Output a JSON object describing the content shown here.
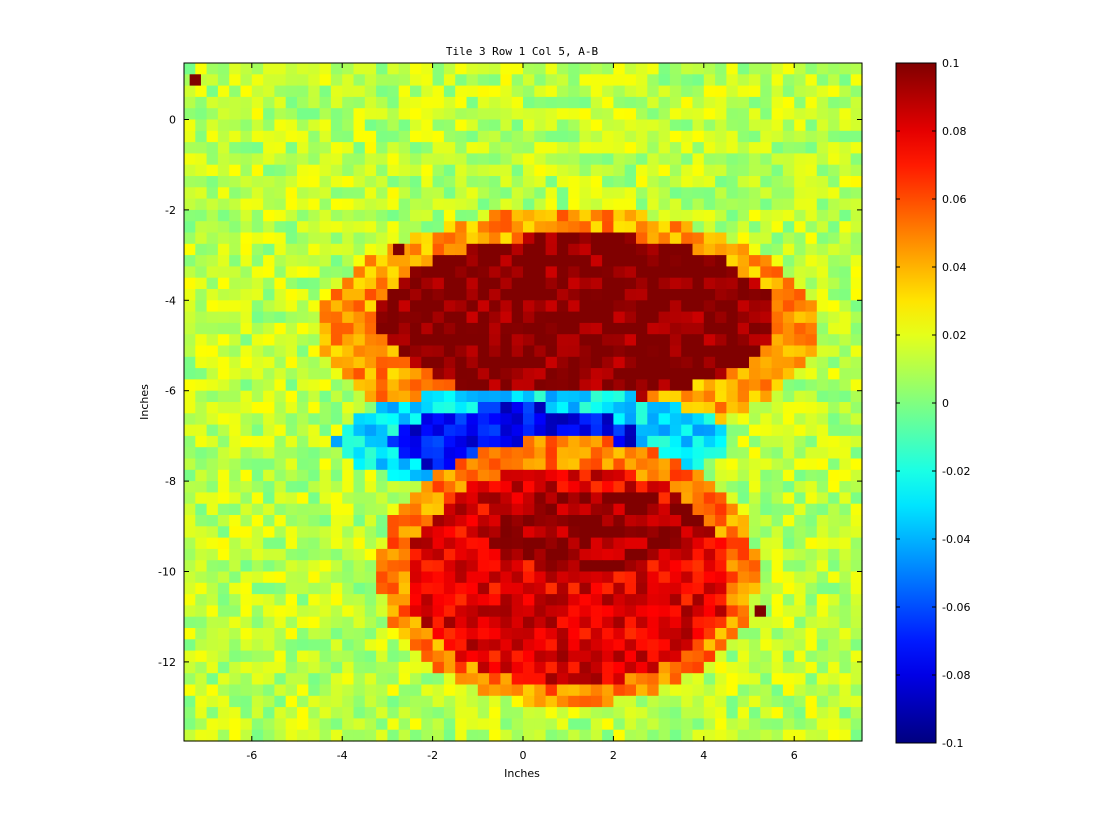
{
  "chart_data": {
    "type": "heatmap",
    "title": "Tile 3 Row 1 Col 5, A-B",
    "xlabel": "Inches",
    "ylabel": "Inches",
    "xlim": [
      -7.5,
      7.5
    ],
    "ylim": [
      -13.75,
      1.25
    ],
    "x_ticks": [
      -6,
      -4,
      -2,
      0,
      2,
      4,
      6
    ],
    "x_tick_labels": [
      "-6",
      "-4",
      "-2",
      "0",
      "2",
      "4",
      "6"
    ],
    "y_ticks": [
      0,
      -2,
      -4,
      -6,
      -8,
      -10,
      -12
    ],
    "y_tick_labels": [
      "0",
      "-2",
      "-4",
      "-6",
      "-8",
      "-10",
      "-12"
    ],
    "grid": false,
    "colormap": "jet",
    "clim": [
      -0.1,
      0.1
    ],
    "colorbar_ticks": [
      0.1,
      0.08,
      0.06,
      0.04,
      0.02,
      0,
      -0.02,
      -0.04,
      -0.06,
      -0.08,
      -0.1
    ],
    "colorbar_tick_labels": [
      "0.1",
      "0.08",
      "0.06",
      "0.04",
      "0.02",
      "0",
      "-0.02",
      "-0.04",
      "-0.06",
      "-0.08",
      "-0.1"
    ],
    "grid_cell_size_inches": 0.25,
    "background_value": 0.012,
    "regions": [
      {
        "shape": "ellipse",
        "center": [
          1.0,
          -4.6
        ],
        "radii": [
          5.5,
          2.6
        ],
        "value": 0.045
      },
      {
        "shape": "ellipse",
        "center": [
          1.2,
          -4.4
        ],
        "radii": [
          4.4,
          1.85
        ],
        "value": 0.1
      },
      {
        "shape": "ellipse",
        "center": [
          0.2,
          -7.1
        ],
        "radii": [
          4.4,
          1.15
        ],
        "value": -0.03
      },
      {
        "shape": "ellipse",
        "center": [
          -0.2,
          -7.1
        ],
        "radii": [
          2.8,
          0.75
        ],
        "value": -0.075
      },
      {
        "shape": "ellipse",
        "center": [
          1.0,
          -10.0
        ],
        "radii": [
          4.2,
          2.95
        ],
        "value": 0.05
      },
      {
        "shape": "ellipse",
        "center": [
          1.0,
          -10.1
        ],
        "radii": [
          3.6,
          2.45
        ],
        "value": 0.08
      },
      {
        "shape": "ellipse",
        "center": [
          1.6,
          -9.1
        ],
        "radii": [
          2.6,
          0.85
        ],
        "value": 0.095
      }
    ],
    "hot_pixels": [
      {
        "x": -7.25,
        "y": 0.875,
        "value": 0.1
      },
      {
        "x": -2.75,
        "y": -2.875,
        "value": 0.1
      },
      {
        "x": 5.25,
        "y": -10.875,
        "value": 0.1
      }
    ]
  }
}
